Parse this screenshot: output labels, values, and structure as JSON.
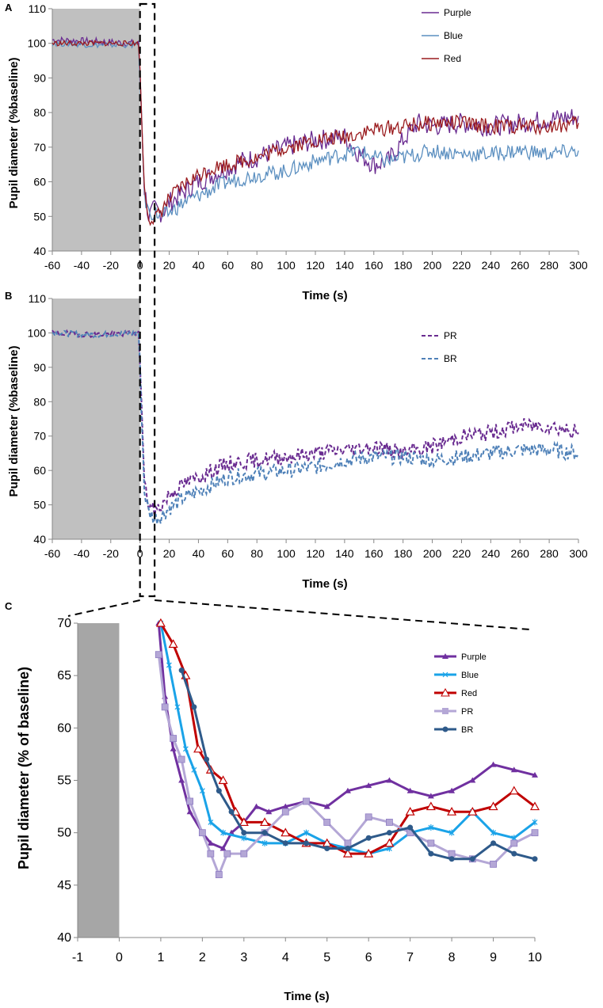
{
  "chart_data": [
    {
      "panel": "A",
      "type": "line",
      "xlabel": "Time (s)",
      "ylabel": "Pupil diameter (%baseline)",
      "xlim": [
        -60,
        300
      ],
      "ylim": [
        40,
        110
      ],
      "xticks": [
        -60,
        -40,
        -20,
        0,
        20,
        40,
        60,
        80,
        100,
        120,
        140,
        160,
        180,
        200,
        220,
        240,
        260,
        280,
        300
      ],
      "yticks": [
        40,
        50,
        60,
        70,
        80,
        90,
        100,
        110
      ],
      "shaded_region": [
        -60,
        0
      ],
      "zoom_window": [
        0,
        10
      ],
      "series": [
        {
          "name": "Purple",
          "color": "#6a2c91",
          "style": "solid",
          "points": [
            [
              -60,
              101
            ],
            [
              -30,
              100.5
            ],
            [
              -1,
              100
            ],
            [
              0,
              92
            ],
            [
              3,
              58
            ],
            [
              6,
              50
            ],
            [
              10,
              52
            ],
            [
              15,
              51
            ],
            [
              20,
              54
            ],
            [
              30,
              57
            ],
            [
              40,
              60
            ],
            [
              50,
              62
            ],
            [
              60,
              64
            ],
            [
              70,
              66
            ],
            [
              80,
              67
            ],
            [
              100,
              70
            ],
            [
              120,
              72
            ],
            [
              140,
              73
            ],
            [
              150,
              68
            ],
            [
              160,
              65
            ],
            [
              170,
              66
            ],
            [
              180,
              72
            ],
            [
              190,
              77
            ],
            [
              200,
              76
            ],
            [
              220,
              77
            ],
            [
              240,
              76
            ],
            [
              260,
              77
            ],
            [
              280,
              78
            ],
            [
              300,
              79
            ]
          ]
        },
        {
          "name": "Blue",
          "color": "#5b8fc0",
          "style": "solid",
          "points": [
            [
              -60,
              100
            ],
            [
              -30,
              99.5
            ],
            [
              -1,
              99.5
            ],
            [
              0,
              90
            ],
            [
              3,
              56
            ],
            [
              6,
              51
            ],
            [
              10,
              51
            ],
            [
              15,
              50
            ],
            [
              20,
              51
            ],
            [
              30,
              54
            ],
            [
              40,
              56
            ],
            [
              50,
              58
            ],
            [
              60,
              60
            ],
            [
              70,
              61
            ],
            [
              80,
              62
            ],
            [
              100,
              63
            ],
            [
              120,
              66
            ],
            [
              140,
              68
            ],
            [
              150,
              69
            ],
            [
              160,
              67
            ],
            [
              170,
              66
            ],
            [
              180,
              67
            ],
            [
              200,
              69
            ],
            [
              220,
              68
            ],
            [
              240,
              68
            ],
            [
              260,
              69
            ],
            [
              280,
              68
            ],
            [
              300,
              69
            ]
          ]
        },
        {
          "name": "Red",
          "color": "#9a1b1e",
          "style": "solid",
          "points": [
            [
              -60,
              100
            ],
            [
              -30,
              100
            ],
            [
              -1,
              100
            ],
            [
              0,
              91
            ],
            [
              3,
              58
            ],
            [
              6,
              50
            ],
            [
              10,
              49
            ],
            [
              15,
              52
            ],
            [
              20,
              55
            ],
            [
              30,
              59
            ],
            [
              40,
              62
            ],
            [
              50,
              64
            ],
            [
              60,
              65
            ],
            [
              70,
              66
            ],
            [
              80,
              67
            ],
            [
              100,
              70
            ],
            [
              120,
              72
            ],
            [
              140,
              73
            ],
            [
              160,
              75
            ],
            [
              180,
              76
            ],
            [
              200,
              77
            ],
            [
              220,
              77
            ],
            [
              240,
              76
            ],
            [
              260,
              76
            ],
            [
              280,
              76
            ],
            [
              300,
              77
            ]
          ]
        }
      ]
    },
    {
      "panel": "B",
      "type": "line",
      "xlabel": "Time (s)",
      "ylabel": "Pupil diameter (%baseline)",
      "xlim": [
        -60,
        300
      ],
      "ylim": [
        40,
        110
      ],
      "xticks": [
        -60,
        -40,
        -20,
        0,
        20,
        40,
        60,
        80,
        100,
        120,
        140,
        160,
        180,
        200,
        220,
        240,
        260,
        280,
        300
      ],
      "yticks": [
        40,
        50,
        60,
        70,
        80,
        90,
        100,
        110
      ],
      "shaded_region": [
        -60,
        0
      ],
      "zoom_window": [
        0,
        10
      ],
      "series": [
        {
          "name": "PR",
          "color": "#6a2c91",
          "style": "dashed",
          "points": [
            [
              -60,
              100
            ],
            [
              -30,
              99.5
            ],
            [
              -1,
              100
            ],
            [
              0,
              92
            ],
            [
              3,
              56
            ],
            [
              6,
              50
            ],
            [
              10,
              48
            ],
            [
              15,
              50
            ],
            [
              20,
              53
            ],
            [
              30,
              56
            ],
            [
              40,
              58
            ],
            [
              50,
              60
            ],
            [
              60,
              62
            ],
            [
              80,
              63
            ],
            [
              100,
              64
            ],
            [
              120,
              65
            ],
            [
              140,
              66
            ],
            [
              160,
              67
            ],
            [
              180,
              65
            ],
            [
              200,
              67
            ],
            [
              220,
              70
            ],
            [
              240,
              71
            ],
            [
              260,
              73
            ],
            [
              280,
              73
            ],
            [
              300,
              71
            ]
          ]
        },
        {
          "name": "BR",
          "color": "#4f81b8",
          "style": "dashed",
          "points": [
            [
              -60,
              100
            ],
            [
              -30,
              99.5
            ],
            [
              -1,
              100
            ],
            [
              0,
              90
            ],
            [
              3,
              54
            ],
            [
              6,
              48
            ],
            [
              10,
              46
            ],
            [
              15,
              47
            ],
            [
              20,
              49
            ],
            [
              30,
              52
            ],
            [
              40,
              54
            ],
            [
              50,
              56
            ],
            [
              60,
              58
            ],
            [
              80,
              59
            ],
            [
              100,
              60
            ],
            [
              120,
              61
            ],
            [
              140,
              63
            ],
            [
              160,
              64
            ],
            [
              180,
              64
            ],
            [
              200,
              63
            ],
            [
              220,
              64
            ],
            [
              240,
              65
            ],
            [
              260,
              66
            ],
            [
              280,
              66
            ],
            [
              300,
              65
            ]
          ]
        }
      ]
    },
    {
      "panel": "C",
      "type": "line",
      "xlabel": "Time (s)",
      "ylabel": "Pupil diameter (% of baseline)",
      "xlim": [
        -1,
        10
      ],
      "ylim": [
        40,
        70
      ],
      "xticks": [
        -1,
        0,
        1,
        2,
        3,
        4,
        5,
        6,
        7,
        8,
        9,
        10
      ],
      "yticks": [
        40,
        45,
        50,
        55,
        60,
        65,
        70
      ],
      "shaded_region": [
        -1,
        0
      ],
      "series": [
        {
          "name": "Purple",
          "color": "#7030a0",
          "marker": "triangle-filled",
          "points": [
            [
              0.95,
              70
            ],
            [
              1.1,
              63
            ],
            [
              1.3,
              58
            ],
            [
              1.5,
              55
            ],
            [
              1.7,
              52
            ],
            [
              2.0,
              50
            ],
            [
              2.2,
              49
            ],
            [
              2.5,
              48.5
            ],
            [
              2.7,
              50
            ],
            [
              3.0,
              51
            ],
            [
              3.3,
              52.5
            ],
            [
              3.6,
              52
            ],
            [
              4.0,
              52.5
            ],
            [
              4.5,
              53
            ],
            [
              5.0,
              52.5
            ],
            [
              5.5,
              54
            ],
            [
              6.0,
              54.5
            ],
            [
              6.5,
              55
            ],
            [
              7.0,
              54
            ],
            [
              7.5,
              53.5
            ],
            [
              8.0,
              54
            ],
            [
              8.5,
              55
            ],
            [
              9.0,
              56.5
            ],
            [
              9.5,
              56
            ],
            [
              10.0,
              55.5
            ]
          ]
        },
        {
          "name": "Blue",
          "color": "#1aa3e8",
          "marker": "x",
          "points": [
            [
              1.0,
              70
            ],
            [
              1.2,
              66
            ],
            [
              1.4,
              62
            ],
            [
              1.6,
              58
            ],
            [
              1.8,
              56
            ],
            [
              2.0,
              54
            ],
            [
              2.2,
              51
            ],
            [
              2.5,
              50
            ],
            [
              3.0,
              49.5
            ],
            [
              3.5,
              49
            ],
            [
              4.0,
              49
            ],
            [
              4.5,
              50
            ],
            [
              5.0,
              49
            ],
            [
              5.5,
              48.5
            ],
            [
              6.0,
              48
            ],
            [
              6.5,
              48.5
            ],
            [
              7.0,
              50
            ],
            [
              7.5,
              50.5
            ],
            [
              8.0,
              50
            ],
            [
              8.5,
              52
            ],
            [
              9.0,
              50
            ],
            [
              9.5,
              49.5
            ],
            [
              10.0,
              51
            ]
          ]
        },
        {
          "name": "Red",
          "color": "#c00000",
          "marker": "triangle-open",
          "points": [
            [
              1.0,
              70
            ],
            [
              1.3,
              68
            ],
            [
              1.6,
              65
            ],
            [
              1.9,
              58
            ],
            [
              2.2,
              56
            ],
            [
              2.5,
              55
            ],
            [
              2.8,
              52
            ],
            [
              3.0,
              51
            ],
            [
              3.5,
              51
            ],
            [
              4.0,
              50
            ],
            [
              4.5,
              49
            ],
            [
              5.0,
              49
            ],
            [
              5.5,
              48
            ],
            [
              6.0,
              48
            ],
            [
              6.5,
              49
            ],
            [
              7.0,
              52
            ],
            [
              7.5,
              52.5
            ],
            [
              8.0,
              52
            ],
            [
              8.5,
              52
            ],
            [
              9.0,
              52.5
            ],
            [
              9.5,
              54
            ],
            [
              10.0,
              52.5
            ]
          ]
        },
        {
          "name": "PR",
          "color": "#b4a7d6",
          "marker": "square",
          "points": [
            [
              0.95,
              67
            ],
            [
              1.1,
              62
            ],
            [
              1.3,
              59
            ],
            [
              1.5,
              57
            ],
            [
              1.7,
              53
            ],
            [
              2.0,
              50
            ],
            [
              2.2,
              48
            ],
            [
              2.4,
              46
            ],
            [
              2.6,
              48
            ],
            [
              3.0,
              48
            ],
            [
              3.5,
              50
            ],
            [
              4.0,
              52
            ],
            [
              4.5,
              53
            ],
            [
              5.0,
              51
            ],
            [
              5.5,
              49
            ],
            [
              6.0,
              51.5
            ],
            [
              6.5,
              51
            ],
            [
              7.0,
              50
            ],
            [
              7.5,
              49
            ],
            [
              8.0,
              48
            ],
            [
              8.5,
              47.5
            ],
            [
              9.0,
              47
            ],
            [
              9.5,
              49
            ],
            [
              10.0,
              50
            ]
          ]
        },
        {
          "name": "BR",
          "color": "#2e5a8a",
          "marker": "circle",
          "points": [
            [
              1.5,
              65.5
            ],
            [
              1.8,
              62
            ],
            [
              2.1,
              57
            ],
            [
              2.4,
              54
            ],
            [
              2.7,
              52
            ],
            [
              3.0,
              50
            ],
            [
              3.5,
              50
            ],
            [
              4.0,
              49
            ],
            [
              4.5,
              49
            ],
            [
              5.0,
              48.5
            ],
            [
              5.5,
              48.5
            ],
            [
              6.0,
              49.5
            ],
            [
              6.5,
              50
            ],
            [
              7.0,
              50.5
            ],
            [
              7.5,
              48
            ],
            [
              8.0,
              47.5
            ],
            [
              8.5,
              47.5
            ],
            [
              9.0,
              49
            ],
            [
              9.5,
              48
            ],
            [
              10.0,
              47.5
            ]
          ]
        }
      ]
    }
  ]
}
